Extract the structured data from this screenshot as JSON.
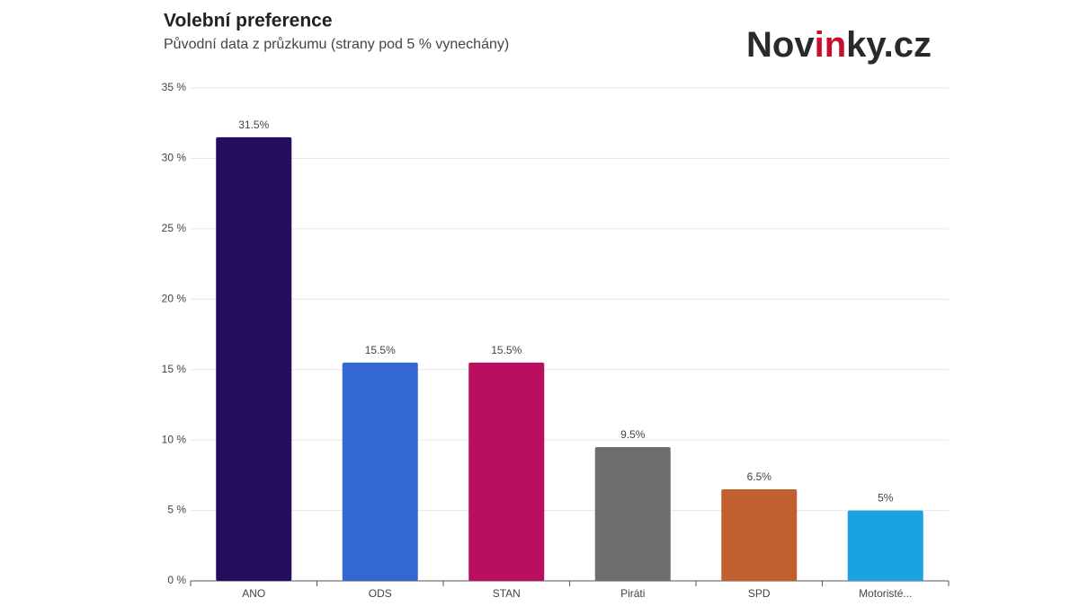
{
  "chart_data": {
    "type": "bar",
    "title": "Volební preference",
    "subtitle": "Původní data z průzkumu (strany pod 5 % vynechány)",
    "logo": [
      "Nov",
      "in",
      "ky.cz"
    ],
    "categories": [
      "ANO",
      "ODS",
      "STAN",
      "Piráti",
      "SPD",
      "Motoristé..."
    ],
    "values": [
      31.5,
      15.5,
      15.5,
      9.5,
      6.5,
      5
    ],
    "value_labels": [
      "31.5%",
      "15.5%",
      "15.5%",
      "9.5%",
      "6.5%",
      "5%"
    ],
    "colors": [
      "#260e5e",
      "#3367d1",
      "#b90f5e",
      "#6e6e6e",
      "#c0602e",
      "#1aa3e0"
    ],
    "ylim": [
      0,
      35
    ],
    "yticks": [
      {
        "value": 0,
        "label": "0 %"
      },
      {
        "value": 5,
        "label": "5 %"
      },
      {
        "value": 10,
        "label": "10 %"
      },
      {
        "value": 15,
        "label": "15 %"
      },
      {
        "value": 20,
        "label": "20 %"
      },
      {
        "value": 25,
        "label": "25 %"
      },
      {
        "value": 30,
        "label": "30 %"
      },
      {
        "value": 35,
        "label": "35 %"
      }
    ],
    "grid": true
  }
}
